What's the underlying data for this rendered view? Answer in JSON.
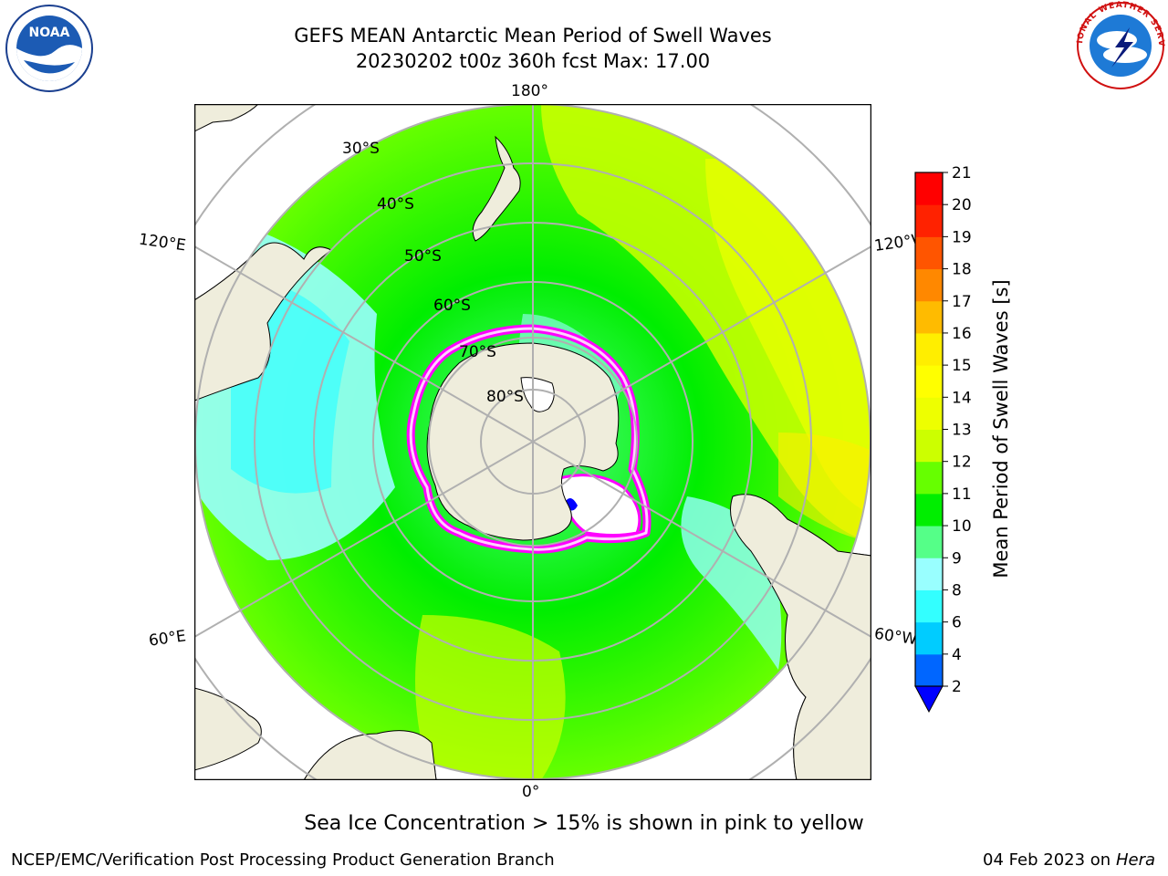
{
  "title": "GEFS MEAN Antarctic Mean Period of Swell Waves",
  "subtitle": "20230202 t00z 360h fcst   Max: 17.00",
  "logos": {
    "left": {
      "name": "noaa-logo",
      "text": "NOAA"
    },
    "right": {
      "name": "nws-logo",
      "text": "NATIONAL WEATHER SERVICE"
    }
  },
  "map": {
    "projection": "south-polar-stereographic",
    "lon_labels": {
      "top": "180°",
      "bottom": "0°",
      "upper_left": "120°E",
      "upper_right": "120°W",
      "lower_left": "60°E",
      "lower_right": "60°W"
    },
    "lat_labels": [
      "30°S",
      "40°S",
      "50°S",
      "60°S",
      "70°S",
      "80°S"
    ],
    "land_color": "#efeddc",
    "sea_ice_colors": [
      "#ff00ff",
      "#ffd0ff",
      "#ffff00",
      "#ffffff"
    ]
  },
  "colorbar": {
    "label": "Mean Period of Swell Waves [s]",
    "ticks": [
      "2",
      "4",
      "6",
      "8",
      "9",
      "10",
      "11",
      "12",
      "13",
      "14",
      "15",
      "16",
      "17",
      "18",
      "19",
      "20",
      "21"
    ],
    "colors": [
      "#0066ff",
      "#00ccff",
      "#33ffff",
      "#99ffff",
      "#55ff88",
      "#00ee00",
      "#66ff00",
      "#ccff00",
      "#eeff00",
      "#ffff00",
      "#ffee00",
      "#ffbb00",
      "#ff8800",
      "#ff5500",
      "#ff2200",
      "#ff0000"
    ],
    "under_color": "#0000ff"
  },
  "note": "Sea Ice Concentration > 15% is shown in pink to yellow",
  "footer": {
    "left": "NCEP/EMC/Verification Post Processing Product Generation Branch",
    "right_date": "04 Feb 2023 on",
    "right_machine": "Hera"
  }
}
